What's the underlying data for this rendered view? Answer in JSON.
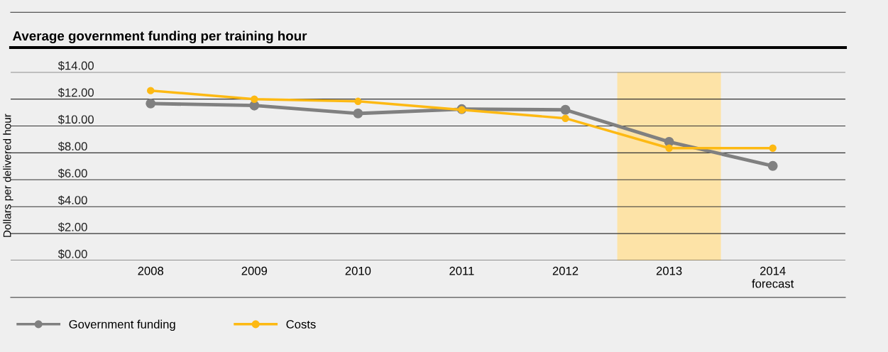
{
  "chart_data": {
    "type": "line",
    "title": "Average government funding per training hour",
    "ylabel": "Dollars per delivered hour",
    "categories": [
      "2008",
      "2009",
      "2010",
      "2011",
      "2012",
      "2013",
      "2014\nforecast"
    ],
    "series": [
      {
        "name": "Government funding",
        "color": "#808080",
        "values": [
          11.67,
          11.52,
          10.93,
          11.25,
          11.2,
          8.82,
          7.03
        ]
      },
      {
        "name": "Costs",
        "color": "#fdb913",
        "values": [
          12.63,
          11.99,
          11.83,
          11.2,
          10.57,
          8.35,
          8.35
        ]
      }
    ],
    "ylim": [
      0,
      14
    ],
    "yticks": [
      {
        "value": 0,
        "label": "$0.00"
      },
      {
        "value": 2,
        "label": "$2.00"
      },
      {
        "value": 4,
        "label": "$4.00"
      },
      {
        "value": 6,
        "label": "$6.00"
      },
      {
        "value": 8,
        "label": "$8.00"
      },
      {
        "value": 10,
        "label": "$10.00"
      },
      {
        "value": 12,
        "label": "$12.00"
      },
      {
        "value": 14,
        "label": "$14.00"
      }
    ],
    "bands": [
      {
        "axis": "x",
        "from": "2013",
        "to": "2013",
        "color": "#fde3a7"
      }
    ],
    "grid": "y",
    "legend": "bottom left",
    "marker": "circle",
    "line_style": "solid"
  }
}
